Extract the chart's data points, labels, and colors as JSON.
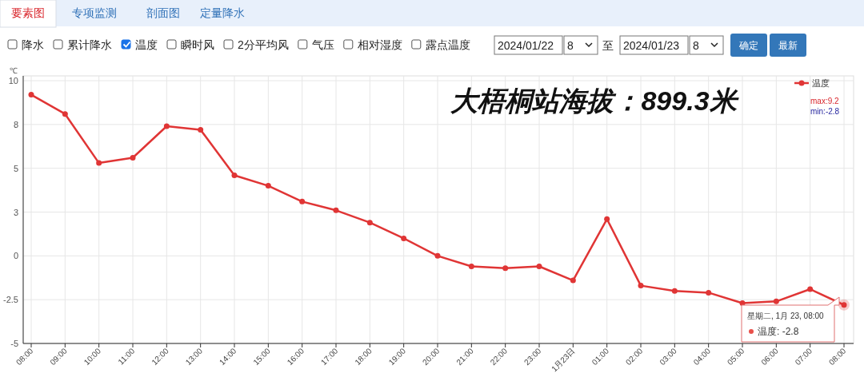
{
  "chart_data": {
    "type": "line",
    "title": "大梧桐站海拔：899.3米",
    "ylabel": "℃",
    "categories": [
      "08:00",
      "09:00",
      "10:00",
      "11:00",
      "12:00",
      "13:00",
      "14:00",
      "15:00",
      "16:00",
      "17:00",
      "18:00",
      "19:00",
      "20:00",
      "21:00",
      "22:00",
      "23:00",
      "1月23日",
      "01:00",
      "02:00",
      "03:00",
      "04:00",
      "05:00",
      "06:00",
      "07:00",
      "08:00"
    ],
    "series": [
      {
        "name": "温度",
        "color": "#e03535",
        "values": [
          9.2,
          8.1,
          5.3,
          5.6,
          7.4,
          7.2,
          4.6,
          4.0,
          3.1,
          2.6,
          1.9,
          1.0,
          0.0,
          -0.6,
          -0.7,
          -0.6,
          -1.4,
          2.1,
          -1.7,
          -2.0,
          -2.1,
          -2.7,
          -2.6,
          -1.9,
          -2.8
        ]
      }
    ],
    "ylim": [
      -5,
      10
    ],
    "yticks": [
      -5,
      -2.5,
      0,
      {
        "value": 2.5,
        "label": "3"
      },
      5,
      {
        "value": 7.5,
        "label": "8"
      },
      10
    ],
    "grid": true,
    "legend": "top right",
    "marker": "circle",
    "line_style": "solid",
    "annotations": [
      "要素图",
      "专项监测",
      "剖面图",
      "定量降水",
      "降水",
      "累计降水",
      "温度",
      "瞬时风",
      "2分平均风",
      "气压",
      "相对湿度",
      "露点温度",
      "2024/01/22",
      "8",
      "至",
      "2024/01/23",
      "8",
      "确定",
      "最新",
      "max:9.2",
      "min:-2.8",
      "星期二, 1月 23, 08:00",
      "温度: -2.8"
    ]
  }
}
